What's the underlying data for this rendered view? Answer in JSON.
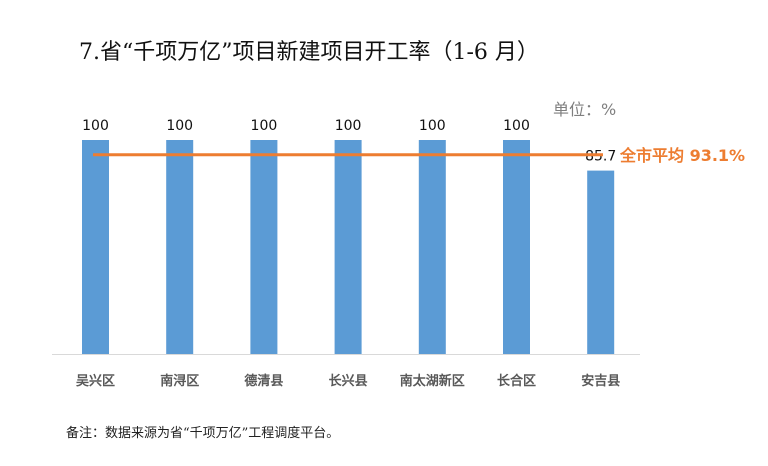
{
  "title": "7.省“千项万亿”项目新建项目开工率（1-6 月）",
  "unit_label": "单位：%",
  "note": "备注：数据来源为省“千项万亿”工程调度平台。",
  "colors": {
    "bar": "#5b9bd5",
    "average_line": "#ed7d31",
    "axis": "#d9d9d9"
  },
  "chart_data": {
    "type": "bar",
    "categories": [
      "吴兴区",
      "南浔区",
      "德清县",
      "长兴县",
      "南太湖新区",
      "长合区",
      "安吉县"
    ],
    "values": [
      100,
      100,
      100,
      100,
      100,
      100,
      85.7
    ],
    "value_labels": [
      "100",
      "100",
      "100",
      "100",
      "100",
      "100",
      "85.7"
    ],
    "ylim": [
      0,
      100
    ],
    "grid": false,
    "average": {
      "value": 93.1,
      "label": "全市平均 93.1%"
    }
  }
}
